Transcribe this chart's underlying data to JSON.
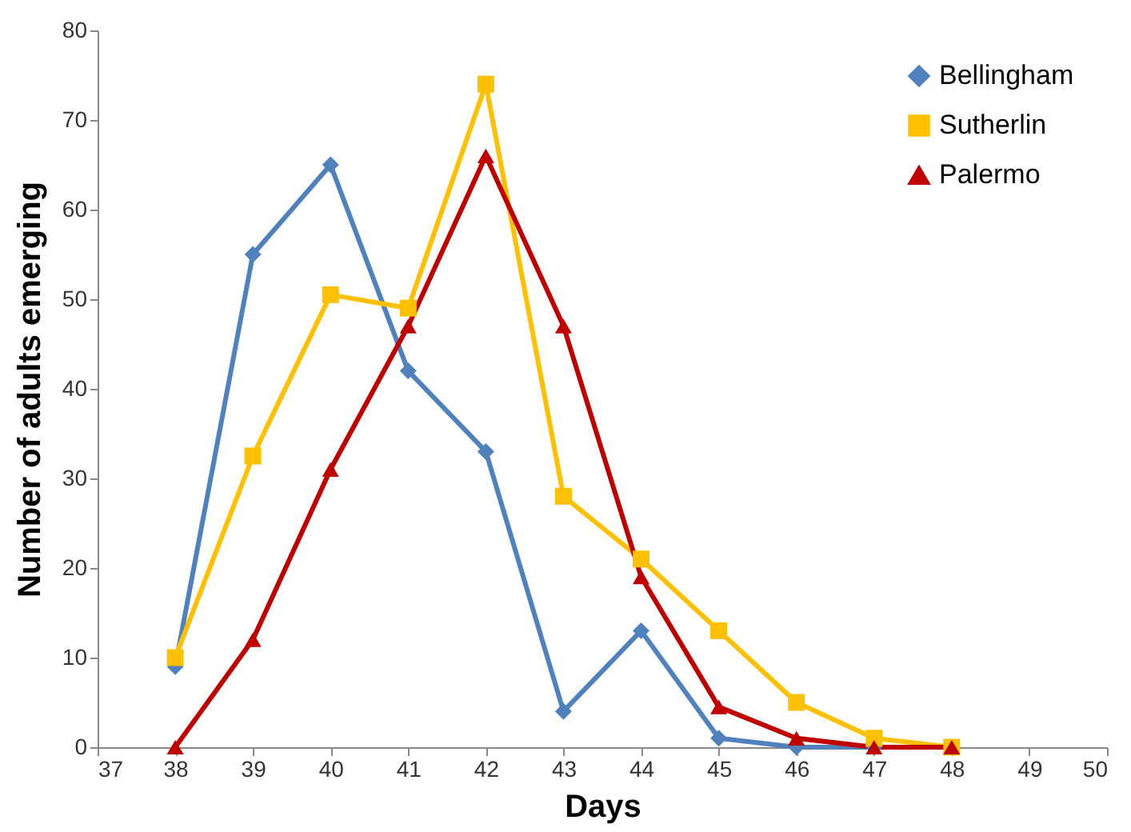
{
  "chart_data": {
    "type": "line",
    "xlabel": "Days",
    "ylabel": "Number of adults emerging",
    "x": [
      38,
      39,
      40,
      41,
      42,
      43,
      44,
      45,
      46,
      47,
      48
    ],
    "series": [
      {
        "name": "Bellingham",
        "color": "#4f81bd",
        "marker": "diamond",
        "values": [
          9,
          55,
          65,
          42,
          33,
          4,
          13,
          1,
          0,
          0,
          0
        ]
      },
      {
        "name": "Sutherlin",
        "color": "#ffc000",
        "marker": "square",
        "values": [
          10,
          32.5,
          50.5,
          49,
          74,
          28,
          21,
          13,
          5,
          1,
          0
        ]
      },
      {
        "name": "Palermo",
        "color": "#c00000",
        "marker": "triangle",
        "values": [
          0,
          12,
          31,
          47,
          66,
          47,
          19,
          4.5,
          1,
          0,
          0
        ]
      }
    ],
    "xlim": [
      37,
      50
    ],
    "xticks": [
      37,
      38,
      39,
      40,
      41,
      42,
      43,
      44,
      45,
      46,
      47,
      48,
      49,
      50
    ],
    "ylim": [
      0,
      80
    ],
    "yticks": [
      0,
      10,
      20,
      30,
      40,
      50,
      60,
      70,
      80
    ],
    "grid": false,
    "legend": "top right",
    "line_style": "solid"
  }
}
